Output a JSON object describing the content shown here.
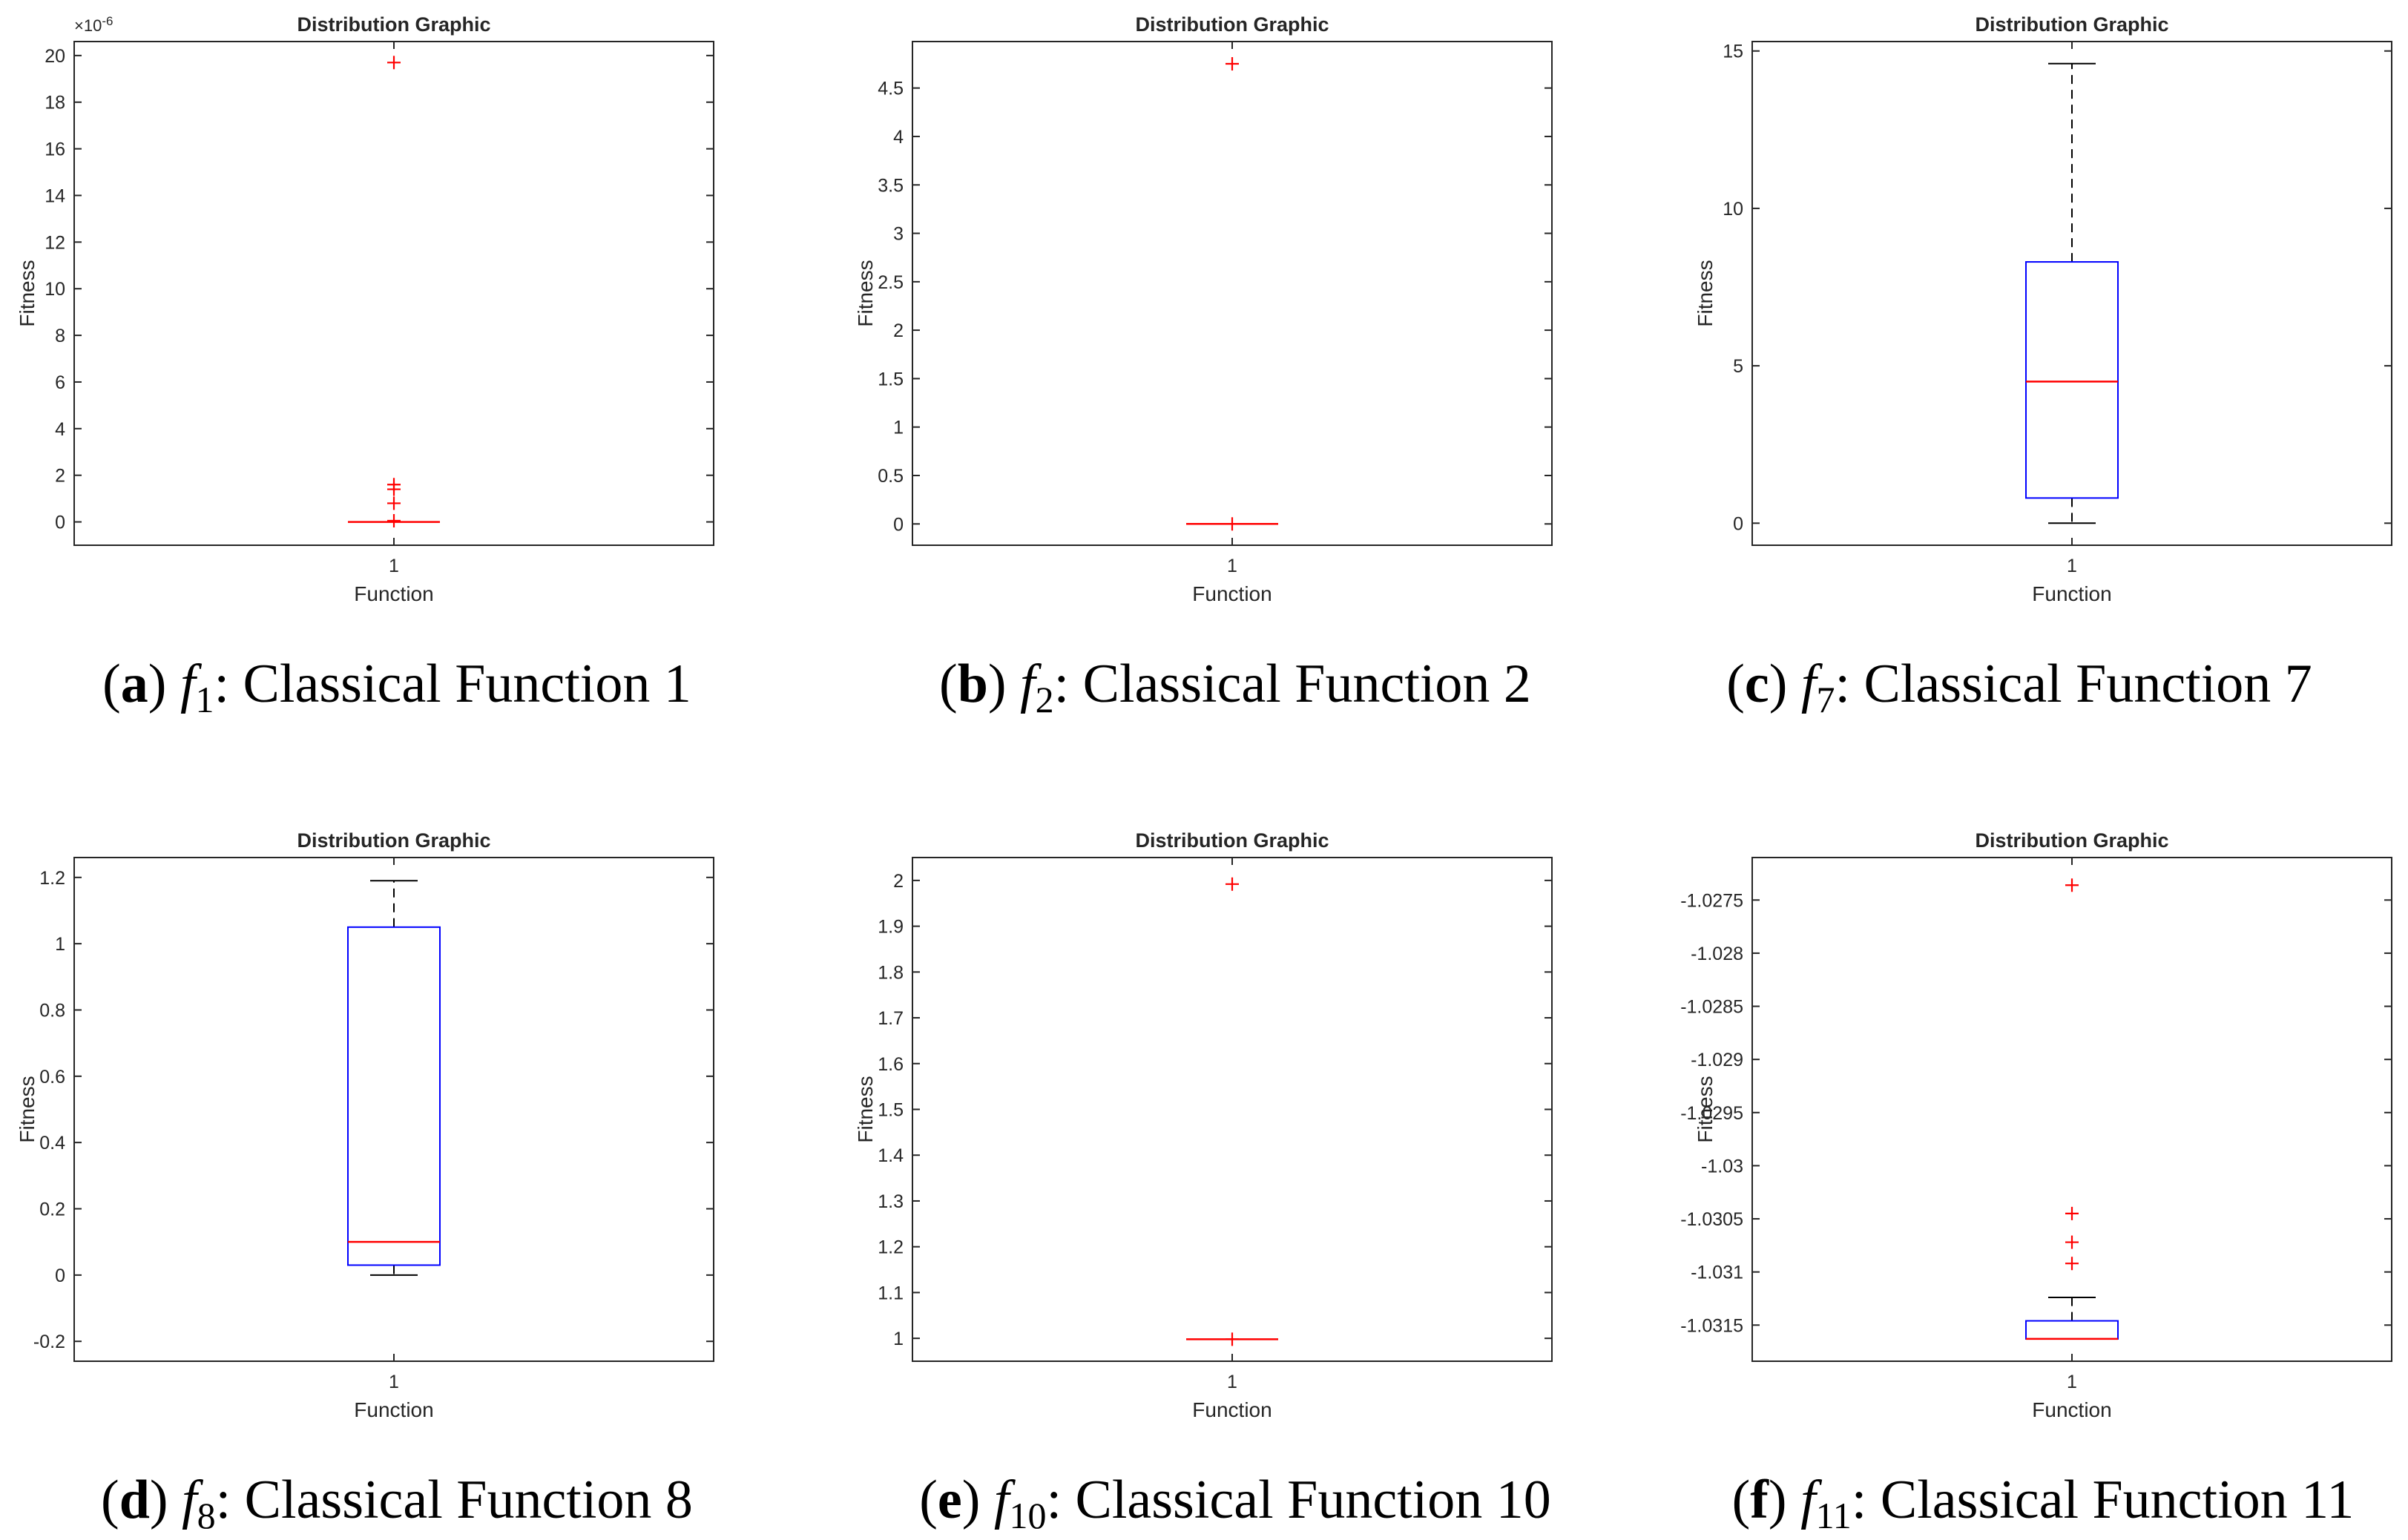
{
  "chart_data": [
    {
      "type": "boxplot",
      "title": "Distribution Graphic",
      "xlabel": "Function",
      "ylabel": "Fitness",
      "categories": [
        "1"
      ],
      "ylim": [
        -1e-06,
        2.06e-05
      ],
      "exponent_label": "×10",
      "exponent": "-6",
      "yticks": [
        0,
        2e-06,
        4e-06,
        6e-06,
        8e-06,
        1e-05,
        1.2e-05,
        1.4e-05,
        1.6e-05,
        1.8e-05,
        2e-05
      ],
      "ytick_labels": [
        "0",
        "2",
        "4",
        "6",
        "8",
        "10",
        "12",
        "14",
        "16",
        "18",
        "20"
      ],
      "box": {
        "min": 0,
        "q1": 0,
        "median": 0,
        "q3": 0,
        "max": 0
      },
      "outliers": [
        1.97e-05,
        1.6e-06,
        1.4e-06,
        8e-07,
        5e-08
      ],
      "caption": {
        "letter": "a",
        "func": "f",
        "sub": "1",
        "text": ": Classical Function 1"
      }
    },
    {
      "type": "boxplot",
      "title": "Distribution Graphic",
      "xlabel": "Function",
      "ylabel": "Fitness",
      "categories": [
        "1"
      ],
      "ylim": [
        -0.22,
        4.98
      ],
      "yticks": [
        0,
        0.5,
        1,
        1.5,
        2,
        2.5,
        3,
        3.5,
        4,
        4.5
      ],
      "ytick_labels": [
        "0",
        "0.5",
        "1",
        "1.5",
        "2",
        "2.5",
        "3",
        "3.5",
        "4",
        "4.5"
      ],
      "box": {
        "min": 0,
        "q1": 0,
        "median": 0,
        "q3": 0,
        "max": 0
      },
      "outliers": [
        4.75,
        0.0
      ],
      "caption": {
        "letter": "b",
        "func": "f",
        "sub": "2",
        "text": ": Classical Function 2"
      }
    },
    {
      "type": "boxplot",
      "title": "Distribution Graphic",
      "xlabel": "Function",
      "ylabel": "Fitness",
      "categories": [
        "1"
      ],
      "ylim": [
        -0.7,
        15.3
      ],
      "yticks": [
        0,
        5,
        10,
        15
      ],
      "ytick_labels": [
        "0",
        "5",
        "10",
        "15"
      ],
      "box": {
        "min": 0,
        "q1": 0.8,
        "median": 4.5,
        "q3": 8.3,
        "max": 14.6
      },
      "outliers": [],
      "caption": {
        "letter": "c",
        "func": "f",
        "sub": "7",
        "text": ": Classical Function 7"
      }
    },
    {
      "type": "boxplot",
      "title": "Distribution Graphic",
      "xlabel": "Function",
      "ylabel": "Fitness",
      "categories": [
        "1"
      ],
      "ylim": [
        -0.26,
        1.26
      ],
      "yticks": [
        -0.2,
        0,
        0.2,
        0.4,
        0.6,
        0.8,
        1,
        1.2
      ],
      "ytick_labels": [
        "-0.2",
        "0",
        "0.2",
        "0.4",
        "0.6",
        "0.8",
        "1",
        "1.2"
      ],
      "box": {
        "min": 0,
        "q1": 0.03,
        "median": 0.1,
        "q3": 1.05,
        "max": 1.19
      },
      "outliers": [],
      "caption": {
        "letter": "d",
        "func": "f",
        "sub": "8",
        "text": ": Classical Function 8"
      }
    },
    {
      "type": "boxplot",
      "title": "Distribution Graphic",
      "xlabel": "Function",
      "ylabel": "Fitness",
      "categories": [
        "1"
      ],
      "ylim": [
        0.95,
        2.05
      ],
      "yticks": [
        1,
        1.1,
        1.2,
        1.3,
        1.4,
        1.5,
        1.6,
        1.7,
        1.8,
        1.9,
        2
      ],
      "ytick_labels": [
        "1",
        "1.1",
        "1.2",
        "1.3",
        "1.4",
        "1.5",
        "1.6",
        "1.7",
        "1.8",
        "1.9",
        "2"
      ],
      "box": {
        "min": 0.998,
        "q1": 0.998,
        "median": 0.998,
        "q3": 0.998,
        "max": 0.998
      },
      "outliers": [
        1.992,
        0.998
      ],
      "caption": {
        "letter": "e",
        "func": "f",
        "sub": "10",
        "text": ": Classical Function 10"
      }
    },
    {
      "type": "boxplot",
      "title": "Distribution Graphic",
      "xlabel": "Function",
      "ylabel": "Fitness",
      "categories": [
        "1"
      ],
      "ylim": [
        -1.03184,
        -1.0271
      ],
      "yticks": [
        -1.0315,
        -1.031,
        -1.0305,
        -1.03,
        -1.0295,
        -1.029,
        -1.0285,
        -1.028,
        -1.0275
      ],
      "ytick_labels": [
        "-1.0315",
        "-1.031",
        "-1.0305",
        "-1.03",
        "-1.0295",
        "-1.029",
        "-1.0285",
        "-1.028",
        "-1.0275"
      ],
      "box": {
        "min": -1.03163,
        "q1": -1.03163,
        "median": -1.03163,
        "q3": -1.03146,
        "max": -1.03124
      },
      "outliers": [
        -1.02736,
        -1.03045,
        -1.03072,
        -1.03092
      ],
      "caption": {
        "letter": "f",
        "func": "f",
        "sub": "11",
        "text": ": Classical Function 11"
      }
    }
  ]
}
